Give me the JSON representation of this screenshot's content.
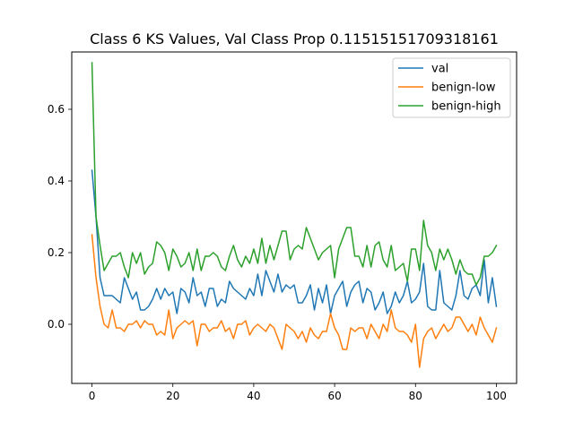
{
  "chart_data": {
    "type": "line",
    "title": "Class 6 KS Values, Val Class Prop 0.11515151709318161",
    "xlabel": "",
    "ylabel": "",
    "xlim": [
      -5,
      105
    ],
    "ylim": [
      -0.165,
      0.76
    ],
    "x_ticks": [
      0,
      20,
      40,
      60,
      80,
      100
    ],
    "y_ticks": [
      0.0,
      0.2,
      0.4,
      0.6
    ],
    "grid": false,
    "legend": "top-right",
    "series": [
      {
        "name": "val",
        "color": "#1f77b4",
        "values": [
          0.43,
          0.3,
          0.13,
          0.08,
          0.08,
          0.08,
          0.07,
          0.06,
          0.13,
          0.1,
          0.07,
          0.09,
          0.04,
          0.04,
          0.05,
          0.07,
          0.1,
          0.07,
          0.1,
          0.08,
          0.09,
          0.03,
          0.1,
          0.09,
          0.06,
          0.13,
          0.08,
          0.09,
          0.05,
          0.1,
          0.1,
          0.05,
          0.07,
          0.06,
          0.12,
          0.1,
          0.09,
          0.08,
          0.07,
          0.1,
          0.08,
          0.14,
          0.08,
          0.15,
          0.12,
          0.09,
          0.14,
          0.09,
          0.11,
          0.1,
          0.11,
          0.06,
          0.06,
          0.08,
          0.11,
          0.04,
          0.1,
          0.06,
          0.11,
          0.03,
          0.08,
          0.1,
          0.12,
          0.05,
          0.09,
          0.11,
          0.12,
          0.06,
          0.1,
          0.09,
          0.04,
          0.06,
          0.09,
          0.03,
          0.05,
          0.09,
          0.06,
          0.08,
          0.12,
          0.06,
          0.07,
          0.09,
          0.17,
          0.05,
          0.04,
          0.04,
          0.15,
          0.06,
          0.05,
          0.04,
          0.08,
          0.15,
          0.08,
          0.07,
          0.1,
          0.11,
          0.08,
          0.18,
          0.06,
          0.13,
          0.05
        ]
      },
      {
        "name": "benign-low",
        "color": "#ff7f0e",
        "values": [
          0.25,
          0.13,
          0.05,
          0.0,
          -0.01,
          0.04,
          -0.01,
          -0.01,
          -0.02,
          0.0,
          0.0,
          0.01,
          -0.01,
          0.01,
          0.0,
          0.0,
          -0.03,
          -0.02,
          -0.03,
          0.04,
          -0.04,
          -0.01,
          0.0,
          0.01,
          0.0,
          0.01,
          -0.06,
          0.0,
          0.0,
          -0.02,
          -0.01,
          -0.01,
          0.01,
          -0.02,
          -0.01,
          -0.04,
          0.0,
          0.0,
          0.01,
          -0.03,
          -0.01,
          0.0,
          -0.01,
          -0.02,
          0.0,
          -0.01,
          -0.04,
          -0.07,
          0.0,
          -0.01,
          -0.02,
          -0.04,
          -0.02,
          -0.05,
          -0.01,
          -0.03,
          -0.04,
          -0.02,
          -0.02,
          0.03,
          -0.01,
          -0.03,
          -0.07,
          -0.07,
          -0.01,
          -0.02,
          -0.01,
          -0.01,
          -0.04,
          0.0,
          -0.02,
          -0.04,
          0.0,
          -0.02,
          0.04,
          -0.01,
          -0.02,
          -0.02,
          -0.03,
          -0.05,
          0.0,
          -0.12,
          -0.04,
          -0.02,
          -0.01,
          -0.04,
          -0.02,
          0.0,
          -0.02,
          -0.01,
          0.02,
          0.02,
          0.0,
          -0.02,
          0.0,
          -0.03,
          0.02,
          -0.01,
          -0.03,
          -0.05,
          -0.01
        ]
      },
      {
        "name": "benign-high",
        "color": "#2ca02c",
        "values": [
          0.73,
          0.3,
          0.22,
          0.15,
          0.17,
          0.19,
          0.19,
          0.2,
          0.16,
          0.13,
          0.2,
          0.17,
          0.2,
          0.14,
          0.16,
          0.17,
          0.23,
          0.22,
          0.2,
          0.15,
          0.21,
          0.19,
          0.16,
          0.17,
          0.2,
          0.15,
          0.21,
          0.15,
          0.19,
          0.19,
          0.2,
          0.19,
          0.16,
          0.15,
          0.19,
          0.22,
          0.18,
          0.16,
          0.19,
          0.17,
          0.21,
          0.17,
          0.24,
          0.17,
          0.22,
          0.18,
          0.22,
          0.26,
          0.26,
          0.18,
          0.21,
          0.22,
          0.21,
          0.27,
          0.24,
          0.21,
          0.18,
          0.2,
          0.21,
          0.22,
          0.13,
          0.21,
          0.24,
          0.27,
          0.27,
          0.19,
          0.19,
          0.16,
          0.22,
          0.16,
          0.22,
          0.23,
          0.18,
          0.16,
          0.22,
          0.15,
          0.16,
          0.17,
          0.12,
          0.21,
          0.21,
          0.15,
          0.29,
          0.22,
          0.2,
          0.15,
          0.21,
          0.18,
          0.21,
          0.18,
          0.14,
          0.18,
          0.15,
          0.14,
          0.14,
          0.11,
          0.13,
          0.19,
          0.19,
          0.2,
          0.22
        ]
      }
    ]
  }
}
